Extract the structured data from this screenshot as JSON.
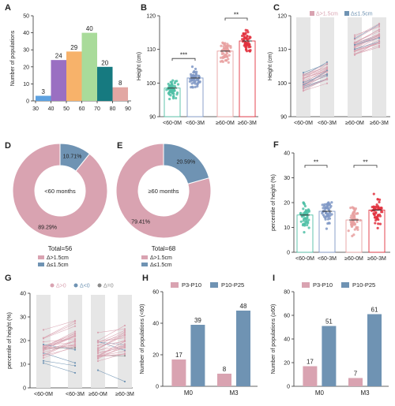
{
  "colors": {
    "pink": "#d9a3b1",
    "blue": "#6f93b3",
    "teal": "#4fc0a6",
    "lightblue": "#7f98c6",
    "salmon": "#e7a0a0",
    "red": "#e2313e",
    "grey_band": "#e6e6e6"
  },
  "chart_data": [
    {
      "panel": "A",
      "type": "bar",
      "categories": [
        "30-40",
        "40-50",
        "50-60",
        "60-70",
        "70-80",
        "80-90"
      ],
      "x_ticks": [
        "30",
        "40",
        "50",
        "60",
        "70",
        "80",
        "90"
      ],
      "values": [
        3,
        24,
        29,
        40,
        20,
        8
      ],
      "bar_colors": [
        "#5da1e0",
        "#9a6fc2",
        "#f7b26a",
        "#a9db9a",
        "#167a80",
        "#e2a7a3"
      ],
      "xlabel": "",
      "ylabel": "Number of populations",
      "ylim": [
        0,
        50
      ]
    },
    {
      "panel": "B",
      "type": "bar",
      "categories": [
        "<60-0M",
        "<60-3M",
        "≥60-0M",
        "≥60-3M"
      ],
      "values": [
        98.5,
        101.5,
        109.5,
        112.5
      ],
      "ylabel": "Height (cm)",
      "ylim": [
        90,
        120
      ],
      "y_ticks": [
        "90",
        "100",
        "110",
        "120"
      ],
      "significance": [
        {
          "from": 0,
          "to": 1,
          "label": "***"
        },
        {
          "from": 2,
          "to": 3,
          "label": "**"
        }
      ]
    },
    {
      "panel": "C",
      "type": "line",
      "categories": [
        "<60-0M",
        "<60-3M",
        "≥60-0M",
        "≥60-3M"
      ],
      "ylabel": "Height (cm)",
      "ylim": [
        90,
        120
      ],
      "y_ticks": [
        "90",
        "100",
        "110",
        "120"
      ],
      "legend": [
        "Δ>1.5cm",
        "Δ≤1.5cm"
      ]
    },
    {
      "panel": "D",
      "type": "pie",
      "labels": [
        "Δ>1.5cm",
        "Δ≤1.5cm"
      ],
      "values": [
        89.29,
        10.71
      ],
      "value_labels": [
        "89.29%",
        "10.71%"
      ],
      "center_text": "<60 months",
      "total_text": "Total=56"
    },
    {
      "panel": "E",
      "type": "pie",
      "labels": [
        "Δ>1.5cm",
        "Δ≤1.5cm"
      ],
      "values": [
        79.41,
        20.59
      ],
      "value_labels": [
        "79.41%",
        "20.59%"
      ],
      "center_text": "≥60 months",
      "total_text": "Total=68"
    },
    {
      "panel": "F",
      "type": "bar",
      "categories": [
        "<60-0M",
        "<60-3M",
        "≥60-0M",
        "≥60-3M"
      ],
      "values": [
        15,
        16.5,
        13,
        17
      ],
      "ylabel": "percentile of height (%)",
      "ylim": [
        0,
        40
      ],
      "y_ticks": [
        "0",
        "10",
        "20",
        "30",
        "40"
      ],
      "significance": [
        {
          "from": 0,
          "to": 1,
          "label": "**"
        },
        {
          "from": 2,
          "to": 3,
          "label": "**"
        }
      ]
    },
    {
      "panel": "G",
      "type": "line",
      "categories": [
        "<60-0M",
        "<60-3M",
        "≥60-0M",
        "≥60-3M"
      ],
      "ylabel": "percentile of height (%)",
      "ylim": [
        0,
        40
      ],
      "y_ticks": [
        "0",
        "10",
        "20",
        "30",
        "40"
      ],
      "legend": [
        "Δ>0",
        "Δ<0",
        "Δ=0"
      ]
    },
    {
      "panel": "H",
      "type": "bar",
      "categories": [
        "M0",
        "M3"
      ],
      "series": [
        {
          "name": "P3-P10",
          "values": [
            17,
            8
          ]
        },
        {
          "name": "P10-P25",
          "values": [
            39,
            48
          ]
        }
      ],
      "ylabel": "Number of populations (<60)",
      "ylim": [
        0,
        60
      ],
      "y_ticks": [
        "0",
        "20",
        "40",
        "60"
      ]
    },
    {
      "panel": "I",
      "type": "bar",
      "categories": [
        "M0",
        "M3"
      ],
      "series": [
        {
          "name": "P3-P10",
          "values": [
            17,
            7
          ]
        },
        {
          "name": "P10-P25",
          "values": [
            51,
            61
          ]
        }
      ],
      "ylabel": "Number of populations (≥60)",
      "ylim": [
        0,
        80
      ],
      "y_ticks": [
        "0",
        "20",
        "40",
        "60",
        "80"
      ]
    }
  ]
}
